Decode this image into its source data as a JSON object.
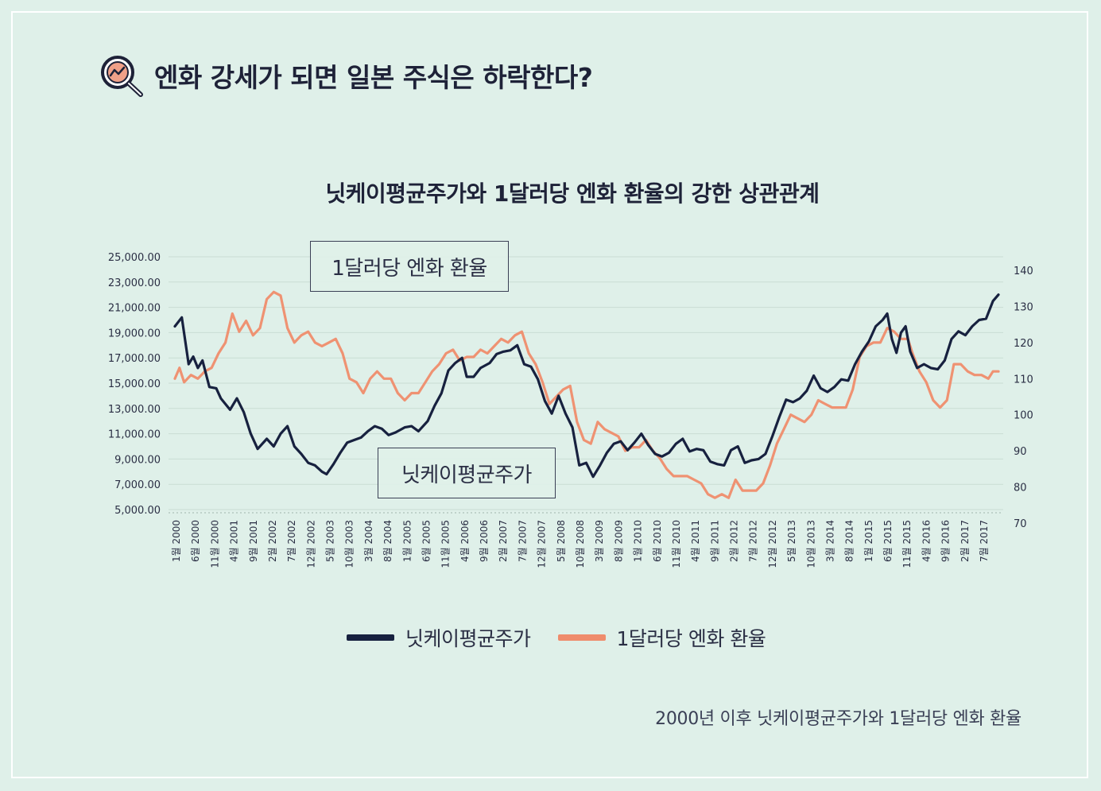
{
  "heading": {
    "icon": "magnifier-chart-icon",
    "text": "엔화 강세가 되면 일본 주식은 하락한다?"
  },
  "caption": "2000년 이후 닛케이평균주가와 1달러당 엔화 환율",
  "colors": {
    "nikkei": "#17213f",
    "yen": "#ef8c6c",
    "background": "#dff0e9"
  },
  "chart_data": {
    "type": "line",
    "title": "닛케이평균주가와 1달러당 엔화 환율의 강한 상관관계",
    "xlabel": "",
    "ylabel_left": "",
    "ylabel_right": "",
    "y_left_ticks": [
      "25,000.00",
      "23,000.00",
      "21,000.00",
      "19,000.00",
      "17,000.00",
      "15,000.00",
      "13,000.00",
      "11,000.00",
      "9,000.00",
      "7,000.00",
      "5,000.00"
    ],
    "y_left_range": [
      5000,
      25000
    ],
    "y_right_ticks": [
      "140",
      "130",
      "120",
      "110",
      "100",
      "90",
      "80",
      "70"
    ],
    "y_right_range": [
      70,
      140
    ],
    "x_tick_labels": [
      "1월 2000",
      "6월 2000",
      "11월 2000",
      "4월 2001",
      "9월 2001",
      "2월 2002",
      "7월 2002",
      "12월 2002",
      "5월 2003",
      "10월 2003",
      "3월 2004",
      "8월 2004",
      "1월 2005",
      "6월 2005",
      "11월 2005",
      "4월 2006",
      "9월 2006",
      "2월 2007",
      "7월 2007",
      "12월 2007",
      "5월 2008",
      "10월 2008",
      "3월 2009",
      "8월 2009",
      "1월 2010",
      "6월 2010",
      "11월 2010",
      "4월 2011",
      "9월 2011",
      "2월 2012",
      "7월 2012",
      "12월 2012",
      "5월 2013",
      "10월 2013",
      "3월 2014",
      "8월 2014",
      "1월 2015",
      "6월 2015",
      "11월 2015",
      "4월 2016",
      "9월 2016",
      "2월 2017",
      "7월 2017"
    ],
    "x_start": 2000.0,
    "x_end": 2017.92,
    "callouts": {
      "yen": "1달러당 엔화 환율",
      "nikkei": "닛케이평균주가"
    },
    "legend": [
      "닛케이평균주가",
      "1달러당 엔화 환율"
    ],
    "series": [
      {
        "name": "닛케이평균주가",
        "axis": "left",
        "points": [
          [
            2000.0,
            19500
          ],
          [
            2000.15,
            20200
          ],
          [
            2000.3,
            16500
          ],
          [
            2000.4,
            17100
          ],
          [
            2000.5,
            16200
          ],
          [
            2000.6,
            16800
          ],
          [
            2000.75,
            14700
          ],
          [
            2000.9,
            14600
          ],
          [
            2001.0,
            13800
          ],
          [
            2001.2,
            12900
          ],
          [
            2001.35,
            13800
          ],
          [
            2001.5,
            12700
          ],
          [
            2001.65,
            11000
          ],
          [
            2001.8,
            9800
          ],
          [
            2002.0,
            10600
          ],
          [
            2002.15,
            10000
          ],
          [
            2002.3,
            11000
          ],
          [
            2002.45,
            11600
          ],
          [
            2002.6,
            10000
          ],
          [
            2002.75,
            9400
          ],
          [
            2002.9,
            8700
          ],
          [
            2003.05,
            8500
          ],
          [
            2003.2,
            8000
          ],
          [
            2003.3,
            7800
          ],
          [
            2003.45,
            8600
          ],
          [
            2003.6,
            9500
          ],
          [
            2003.75,
            10300
          ],
          [
            2003.9,
            10500
          ],
          [
            2004.05,
            10700
          ],
          [
            2004.2,
            11200
          ],
          [
            2004.35,
            11600
          ],
          [
            2004.5,
            11400
          ],
          [
            2004.65,
            10900
          ],
          [
            2004.8,
            11100
          ],
          [
            2005.0,
            11500
          ],
          [
            2005.15,
            11600
          ],
          [
            2005.3,
            11200
          ],
          [
            2005.5,
            12000
          ],
          [
            2005.65,
            13200
          ],
          [
            2005.8,
            14200
          ],
          [
            2005.95,
            16000
          ],
          [
            2006.1,
            16600
          ],
          [
            2006.25,
            17000
          ],
          [
            2006.35,
            15500
          ],
          [
            2006.5,
            15500
          ],
          [
            2006.65,
            16200
          ],
          [
            2006.85,
            16600
          ],
          [
            2007.0,
            17300
          ],
          [
            2007.15,
            17500
          ],
          [
            2007.3,
            17600
          ],
          [
            2007.45,
            18000
          ],
          [
            2007.6,
            16500
          ],
          [
            2007.75,
            16300
          ],
          [
            2007.9,
            15300
          ],
          [
            2008.05,
            13600
          ],
          [
            2008.2,
            12600
          ],
          [
            2008.35,
            14000
          ],
          [
            2008.5,
            12600
          ],
          [
            2008.65,
            11500
          ],
          [
            2008.8,
            8500
          ],
          [
            2008.95,
            8700
          ],
          [
            2009.1,
            7600
          ],
          [
            2009.25,
            8500
          ],
          [
            2009.4,
            9500
          ],
          [
            2009.55,
            10200
          ],
          [
            2009.7,
            10400
          ],
          [
            2009.85,
            9700
          ],
          [
            2010.0,
            10300
          ],
          [
            2010.15,
            11000
          ],
          [
            2010.3,
            10100
          ],
          [
            2010.45,
            9400
          ],
          [
            2010.6,
            9200
          ],
          [
            2010.75,
            9500
          ],
          [
            2010.9,
            10200
          ],
          [
            2011.05,
            10600
          ],
          [
            2011.2,
            9600
          ],
          [
            2011.35,
            9800
          ],
          [
            2011.5,
            9700
          ],
          [
            2011.65,
            8800
          ],
          [
            2011.8,
            8600
          ],
          [
            2011.95,
            8500
          ],
          [
            2012.1,
            9700
          ],
          [
            2012.25,
            10000
          ],
          [
            2012.4,
            8700
          ],
          [
            2012.55,
            8900
          ],
          [
            2012.7,
            9000
          ],
          [
            2012.85,
            9400
          ],
          [
            2013.0,
            10800
          ],
          [
            2013.15,
            12300
          ],
          [
            2013.3,
            13700
          ],
          [
            2013.45,
            13500
          ],
          [
            2013.6,
            13800
          ],
          [
            2013.75,
            14400
          ],
          [
            2013.9,
            15600
          ],
          [
            2014.05,
            14600
          ],
          [
            2014.2,
            14300
          ],
          [
            2014.35,
            14700
          ],
          [
            2014.5,
            15300
          ],
          [
            2014.65,
            15200
          ],
          [
            2014.8,
            16500
          ],
          [
            2014.95,
            17500
          ],
          [
            2015.1,
            18300
          ],
          [
            2015.25,
            19500
          ],
          [
            2015.4,
            20000
          ],
          [
            2015.5,
            20500
          ],
          [
            2015.6,
            18500
          ],
          [
            2015.7,
            17400
          ],
          [
            2015.8,
            19000
          ],
          [
            2015.9,
            19500
          ],
          [
            2016.0,
            17500
          ],
          [
            2016.15,
            16200
          ],
          [
            2016.3,
            16500
          ],
          [
            2016.45,
            16200
          ],
          [
            2016.6,
            16100
          ],
          [
            2016.75,
            16800
          ],
          [
            2016.9,
            18500
          ],
          [
            2017.05,
            19100
          ],
          [
            2017.2,
            18800
          ],
          [
            2017.35,
            19500
          ],
          [
            2017.5,
            20000
          ],
          [
            2017.65,
            20100
          ],
          [
            2017.8,
            21500
          ],
          [
            2017.92,
            22000
          ]
        ]
      },
      {
        "name": "1달러당 엔화 환율",
        "axis": "right",
        "points": [
          [
            2000.0,
            110
          ],
          [
            2000.1,
            113
          ],
          [
            2000.2,
            109
          ],
          [
            2000.35,
            111
          ],
          [
            2000.5,
            110
          ],
          [
            2000.65,
            112
          ],
          [
            2000.8,
            113
          ],
          [
            2000.95,
            117
          ],
          [
            2001.1,
            120
          ],
          [
            2001.25,
            128
          ],
          [
            2001.4,
            123
          ],
          [
            2001.55,
            126
          ],
          [
            2001.7,
            122
          ],
          [
            2001.85,
            124
          ],
          [
            2002.0,
            132
          ],
          [
            2002.15,
            134
          ],
          [
            2002.3,
            133
          ],
          [
            2002.45,
            124
          ],
          [
            2002.6,
            120
          ],
          [
            2002.75,
            122
          ],
          [
            2002.9,
            123
          ],
          [
            2003.05,
            120
          ],
          [
            2003.2,
            119
          ],
          [
            2003.35,
            120
          ],
          [
            2003.5,
            121
          ],
          [
            2003.65,
            117
          ],
          [
            2003.8,
            110
          ],
          [
            2003.95,
            109
          ],
          [
            2004.1,
            106
          ],
          [
            2004.25,
            110
          ],
          [
            2004.4,
            112
          ],
          [
            2004.55,
            110
          ],
          [
            2004.7,
            110
          ],
          [
            2004.85,
            106
          ],
          [
            2005.0,
            104
          ],
          [
            2005.15,
            106
          ],
          [
            2005.3,
            106
          ],
          [
            2005.45,
            109
          ],
          [
            2005.6,
            112
          ],
          [
            2005.75,
            114
          ],
          [
            2005.9,
            117
          ],
          [
            2006.05,
            118
          ],
          [
            2006.2,
            115
          ],
          [
            2006.35,
            116
          ],
          [
            2006.5,
            116
          ],
          [
            2006.65,
            118
          ],
          [
            2006.8,
            117
          ],
          [
            2006.95,
            119
          ],
          [
            2007.1,
            121
          ],
          [
            2007.25,
            120
          ],
          [
            2007.4,
            122
          ],
          [
            2007.55,
            123
          ],
          [
            2007.7,
            117
          ],
          [
            2007.85,
            114
          ],
          [
            2008.0,
            109
          ],
          [
            2008.15,
            103
          ],
          [
            2008.3,
            105
          ],
          [
            2008.45,
            107
          ],
          [
            2008.6,
            108
          ],
          [
            2008.75,
            98
          ],
          [
            2008.9,
            93
          ],
          [
            2009.05,
            92
          ],
          [
            2009.2,
            98
          ],
          [
            2009.35,
            96
          ],
          [
            2009.5,
            95
          ],
          [
            2009.65,
            94
          ],
          [
            2009.8,
            90
          ],
          [
            2009.95,
            91
          ],
          [
            2010.1,
            91
          ],
          [
            2010.25,
            93
          ],
          [
            2010.4,
            90
          ],
          [
            2010.55,
            88
          ],
          [
            2010.7,
            85
          ],
          [
            2010.85,
            83
          ],
          [
            2011.0,
            83
          ],
          [
            2011.15,
            83
          ],
          [
            2011.3,
            82
          ],
          [
            2011.45,
            81
          ],
          [
            2011.6,
            78
          ],
          [
            2011.75,
            77
          ],
          [
            2011.9,
            78
          ],
          [
            2012.05,
            77
          ],
          [
            2012.2,
            82
          ],
          [
            2012.35,
            79
          ],
          [
            2012.5,
            79
          ],
          [
            2012.65,
            79
          ],
          [
            2012.8,
            81
          ],
          [
            2012.95,
            86
          ],
          [
            2013.1,
            92
          ],
          [
            2013.25,
            96
          ],
          [
            2013.4,
            100
          ],
          [
            2013.55,
            99
          ],
          [
            2013.7,
            98
          ],
          [
            2013.85,
            100
          ],
          [
            2014.0,
            104
          ],
          [
            2014.15,
            103
          ],
          [
            2014.3,
            102
          ],
          [
            2014.45,
            102
          ],
          [
            2014.6,
            102
          ],
          [
            2014.75,
            107
          ],
          [
            2014.9,
            116
          ],
          [
            2015.05,
            119
          ],
          [
            2015.2,
            120
          ],
          [
            2015.35,
            120
          ],
          [
            2015.5,
            124
          ],
          [
            2015.65,
            123
          ],
          [
            2015.8,
            121
          ],
          [
            2015.95,
            121
          ],
          [
            2016.05,
            117
          ],
          [
            2016.2,
            112
          ],
          [
            2016.35,
            109
          ],
          [
            2016.5,
            104
          ],
          [
            2016.65,
            102
          ],
          [
            2016.8,
            104
          ],
          [
            2016.95,
            114
          ],
          [
            2017.1,
            114
          ],
          [
            2017.25,
            112
          ],
          [
            2017.4,
            111
          ],
          [
            2017.55,
            111
          ],
          [
            2017.7,
            110
          ],
          [
            2017.8,
            112
          ],
          [
            2017.92,
            112
          ]
        ]
      }
    ]
  }
}
